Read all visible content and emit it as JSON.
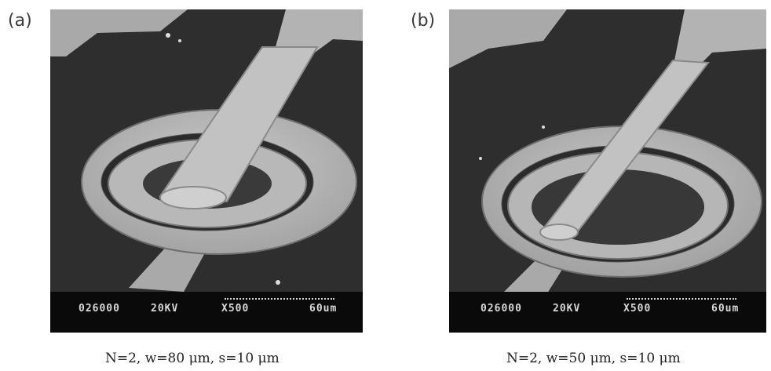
{
  "panels": [
    {
      "label": "(a)",
      "info": {
        "code": "026000",
        "voltage": "20KV",
        "magnification": "X500",
        "scale": "60um"
      },
      "caption": "N=2, w=80 μm, s=10 μm"
    },
    {
      "label": "(b)",
      "info": {
        "code": "026000",
        "voltage": "20KV",
        "magnification": "X500",
        "scale": "60um"
      },
      "caption": "N=2, w=50 μm, s=10 μm"
    }
  ],
  "colors": {
    "substrate": "#2d2d2d",
    "metal": "#b5b5b5",
    "bar": "#0a0a0a",
    "text": "#d8d8d8"
  }
}
